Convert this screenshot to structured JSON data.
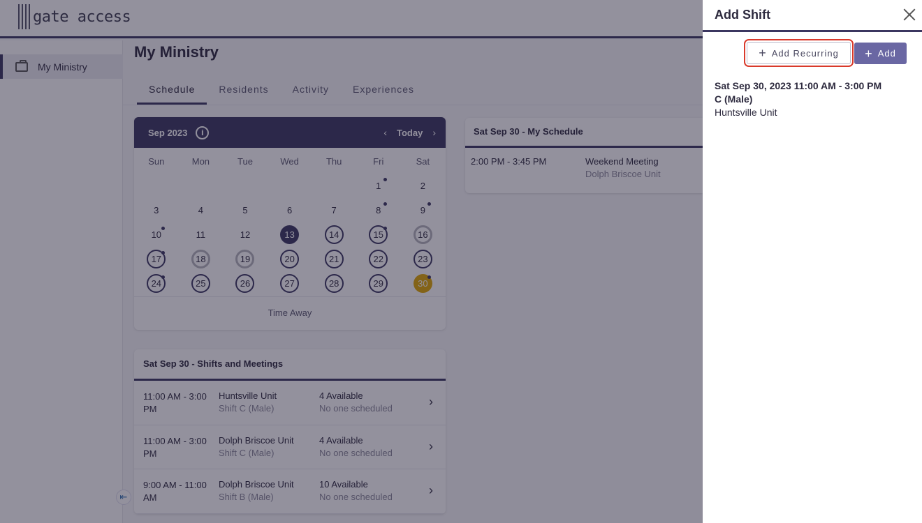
{
  "app": {
    "logo_text": "gate access"
  },
  "sidebar": {
    "items": [
      {
        "label": "My Ministry",
        "icon": "briefcase-icon"
      }
    ]
  },
  "main": {
    "title": "My Ministry",
    "tabs": [
      {
        "label": "Schedule",
        "active": true
      },
      {
        "label": "Residents",
        "active": false
      },
      {
        "label": "Activity",
        "active": false
      },
      {
        "label": "Experiences",
        "active": false
      }
    ]
  },
  "calendar": {
    "month_label": "Sep 2023",
    "today_label": "Today",
    "days_of_week": [
      "Sun",
      "Mon",
      "Tue",
      "Wed",
      "Thu",
      "Fri",
      "Sat"
    ],
    "footer_label": "Time Away",
    "weeks": [
      [
        {
          "d": ""
        },
        {
          "d": ""
        },
        {
          "d": ""
        },
        {
          "d": ""
        },
        {
          "d": ""
        },
        {
          "d": "1",
          "dot": true
        },
        {
          "d": "2"
        }
      ],
      [
        {
          "d": "3"
        },
        {
          "d": "4"
        },
        {
          "d": "5"
        },
        {
          "d": "6"
        },
        {
          "d": "7"
        },
        {
          "d": "8",
          "dot": true
        },
        {
          "d": "9",
          "dot": true
        }
      ],
      [
        {
          "d": "10",
          "dot": true
        },
        {
          "d": "11"
        },
        {
          "d": "12"
        },
        {
          "d": "13",
          "style": "sel"
        },
        {
          "d": "14",
          "style": "ring"
        },
        {
          "d": "15",
          "style": "ring",
          "dot": true
        },
        {
          "d": "16",
          "style": "ring-grey"
        }
      ],
      [
        {
          "d": "17",
          "style": "ring",
          "dot": true
        },
        {
          "d": "18",
          "style": "ring-grey"
        },
        {
          "d": "19",
          "style": "ring-grey"
        },
        {
          "d": "20",
          "style": "ring"
        },
        {
          "d": "21",
          "style": "ring"
        },
        {
          "d": "22",
          "style": "ring"
        },
        {
          "d": "23",
          "style": "ring"
        }
      ],
      [
        {
          "d": "24",
          "style": "ring",
          "dot": true
        },
        {
          "d": "25",
          "style": "ring"
        },
        {
          "d": "26",
          "style": "ring"
        },
        {
          "d": "27",
          "style": "ring"
        },
        {
          "d": "28",
          "style": "ring"
        },
        {
          "d": "29",
          "style": "ring"
        },
        {
          "d": "30",
          "style": "today",
          "dot": true
        }
      ]
    ]
  },
  "my_schedule": {
    "header": "Sat Sep 30 - My Schedule",
    "items": [
      {
        "time": "2:00 PM - 3:45 PM",
        "title": "Weekend Meeting",
        "location": "Dolph Briscoe Unit"
      }
    ]
  },
  "shifts": {
    "header": "Sat Sep 30 - Shifts and Meetings",
    "rows": [
      {
        "time": "11:00 AM - 3:00 PM",
        "unit": "Huntsville Unit",
        "shift": "Shift C (Male)",
        "available": "4 Available",
        "scheduled": "No one scheduled"
      },
      {
        "time": "11:00 AM - 3:00 PM",
        "unit": "Dolph Briscoe Unit",
        "shift": "Shift C (Male)",
        "available": "4 Available",
        "scheduled": "No one scheduled"
      },
      {
        "time": "9:00 AM - 11:00 AM",
        "unit": "Dolph Briscoe Unit",
        "shift": "Shift B (Male)",
        "available": "10 Available",
        "scheduled": "No one scheduled"
      }
    ]
  },
  "panel": {
    "title": "Add Shift",
    "add_recurring_label": "Add Recurring",
    "add_label": "Add",
    "shift_datetime": "Sat Sep 30, 2023 11:00 AM - 3:00 PM",
    "shift_name": "C (Male)",
    "shift_location": "Huntsville Unit"
  },
  "colors": {
    "primary": "#3b3660",
    "accent_today": "#e0a800",
    "button_add": "#6a67a3",
    "highlight": "#d93a2b"
  }
}
